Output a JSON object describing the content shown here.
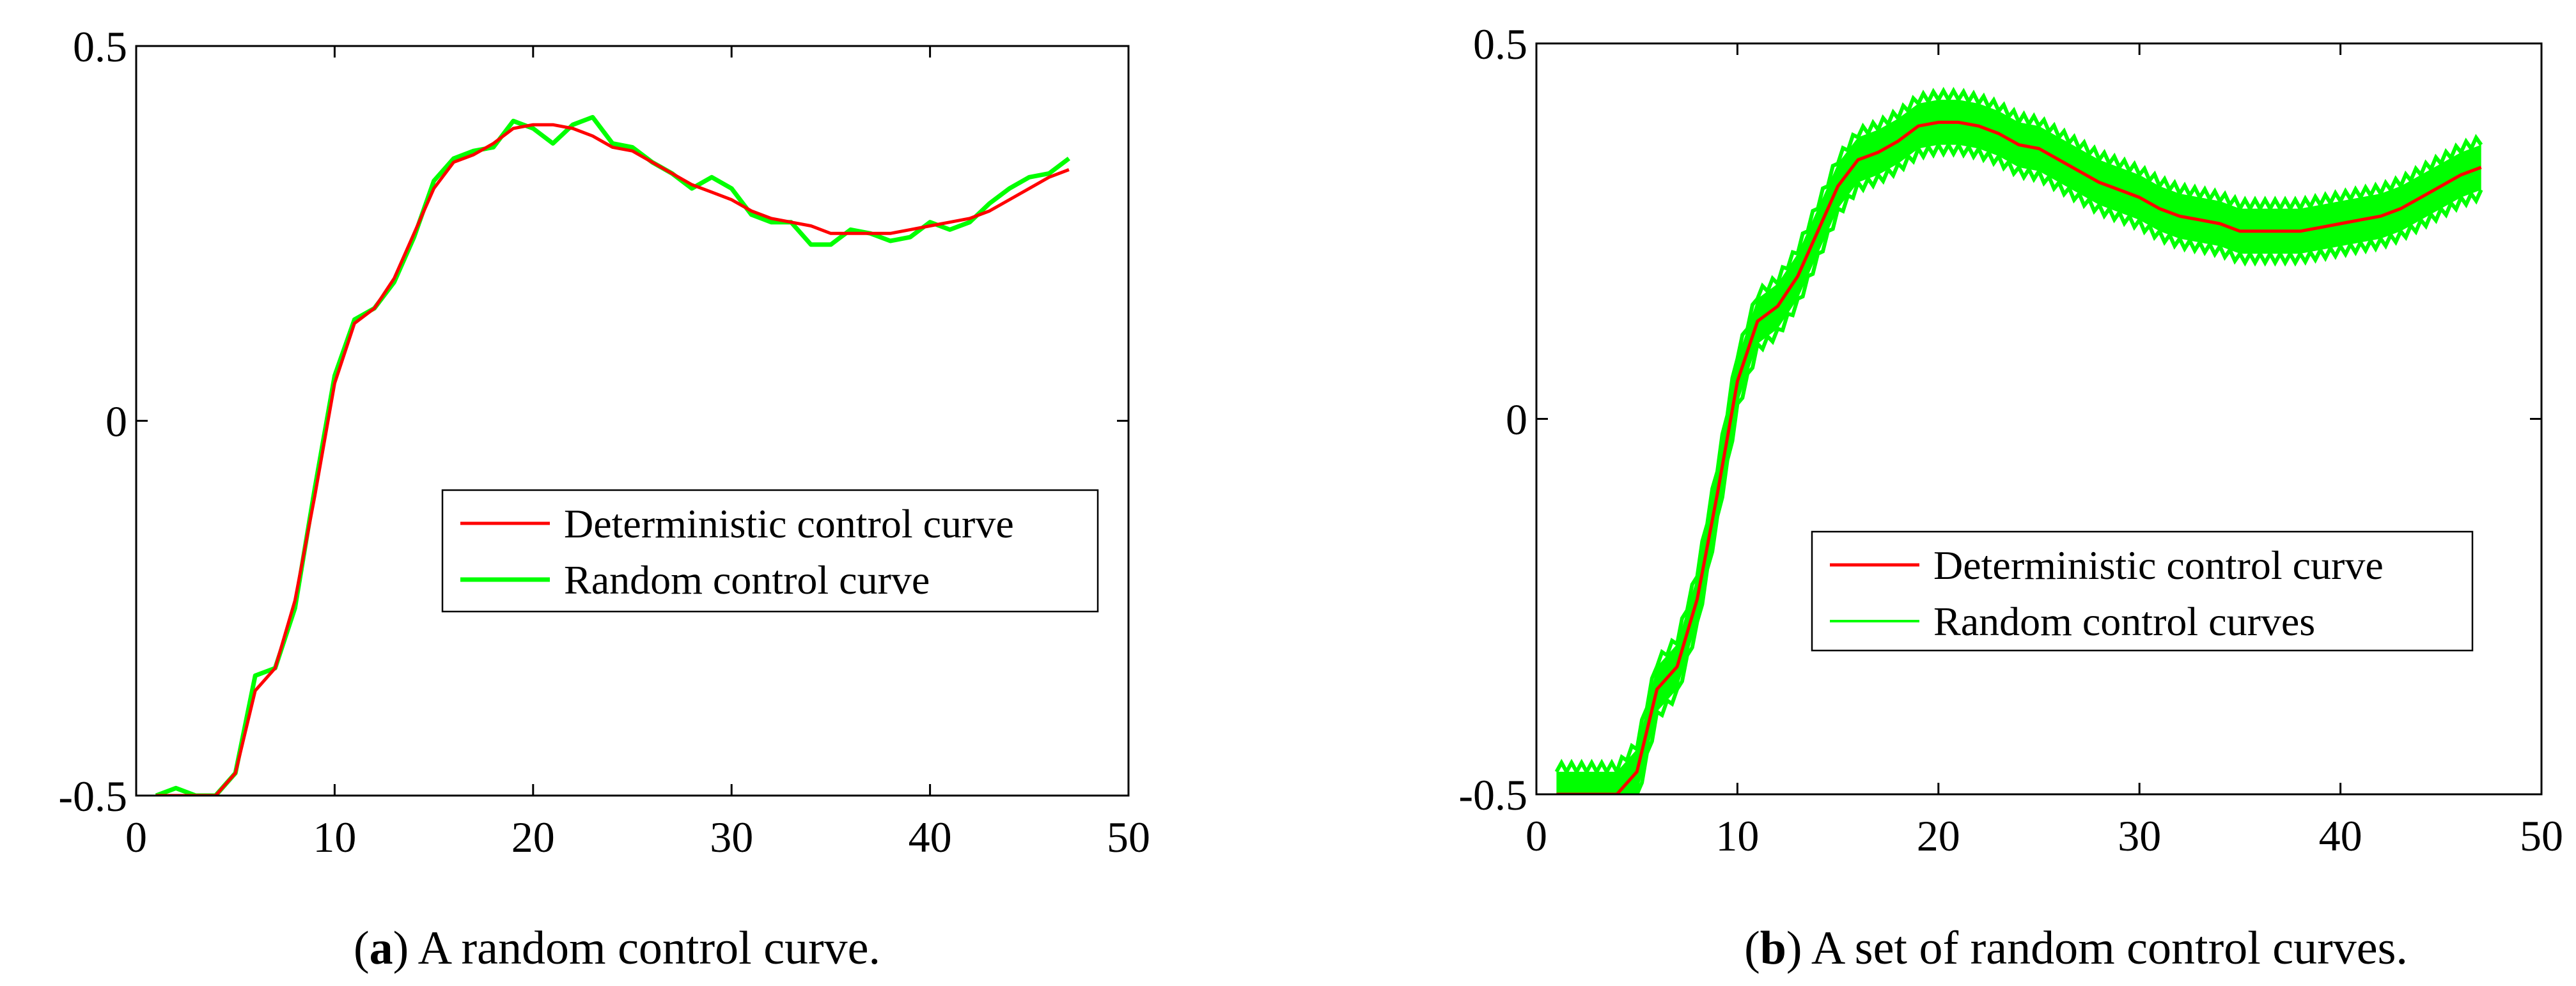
{
  "colors": {
    "deterministic": "#ff0000",
    "random": "#00ff00",
    "axes": "#000000",
    "background": "#ffffff"
  },
  "chart_data": [
    {
      "type": "line",
      "panel_label": "a",
      "caption": "A random control curve.",
      "title": "",
      "xlabel": "",
      "ylabel": "",
      "xlim": [
        0,
        50
      ],
      "ylim": [
        -0.5,
        0.5
      ],
      "x_ticks": [
        "0",
        "10",
        "20",
        "30",
        "40",
        "50"
      ],
      "y_ticks": [
        "-0.5",
        "0",
        "0.5"
      ],
      "grid": false,
      "legend_position": "lower-right",
      "series": [
        {
          "name": "Deterministic control curve",
          "color": "#ff0000",
          "x": [
            1,
            2,
            3,
            4,
            5,
            6,
            7,
            8,
            9,
            10,
            11,
            12,
            13,
            14,
            15,
            16,
            17,
            18,
            19,
            20,
            21,
            22,
            23,
            24,
            25,
            26,
            27,
            28,
            29,
            30,
            31,
            32,
            33,
            34,
            35,
            36,
            37,
            38,
            39,
            40,
            41,
            42,
            43,
            44,
            45,
            46,
            47
          ],
          "y": [
            -0.5,
            -0.5,
            -0.5,
            -0.5,
            -0.47,
            -0.36,
            -0.33,
            -0.24,
            -0.1,
            0.05,
            0.13,
            0.15,
            0.19,
            0.25,
            0.31,
            0.345,
            0.355,
            0.37,
            0.39,
            0.395,
            0.395,
            0.39,
            0.38,
            0.365,
            0.36,
            0.345,
            0.33,
            0.315,
            0.305,
            0.295,
            0.28,
            0.27,
            0.265,
            0.26,
            0.25,
            0.25,
            0.25,
            0.25,
            0.255,
            0.26,
            0.265,
            0.27,
            0.28,
            0.295,
            0.31,
            0.325,
            0.335
          ]
        },
        {
          "name": "Random control curve",
          "color": "#00ff00",
          "x": [
            1,
            2,
            3,
            4,
            5,
            6,
            7,
            8,
            9,
            10,
            11,
            12,
            13,
            14,
            15,
            16,
            17,
            18,
            19,
            20,
            21,
            22,
            23,
            24,
            25,
            26,
            27,
            28,
            29,
            30,
            31,
            32,
            33,
            34,
            35,
            36,
            37,
            38,
            39,
            40,
            41,
            42,
            43,
            44,
            45,
            46,
            47
          ],
          "y": [
            -0.5,
            -0.49,
            -0.5,
            -0.5,
            -0.47,
            -0.34,
            -0.33,
            -0.25,
            -0.09,
            0.06,
            0.135,
            0.15,
            0.185,
            0.245,
            0.32,
            0.35,
            0.36,
            0.365,
            0.4,
            0.39,
            0.37,
            0.395,
            0.405,
            0.37,
            0.365,
            0.345,
            0.33,
            0.31,
            0.325,
            0.31,
            0.275,
            0.265,
            0.265,
            0.235,
            0.235,
            0.255,
            0.25,
            0.24,
            0.245,
            0.265,
            0.255,
            0.265,
            0.29,
            0.31,
            0.325,
            0.33,
            0.35
          ]
        }
      ]
    },
    {
      "type": "line",
      "panel_label": "b",
      "caption": "A set of random control curves.",
      "title": "",
      "xlabel": "",
      "ylabel": "",
      "xlim": [
        0,
        50
      ],
      "ylim": [
        -0.5,
        0.5
      ],
      "x_ticks": [
        "0",
        "10",
        "20",
        "30",
        "40",
        "50"
      ],
      "y_ticks": [
        "-0.5",
        "0",
        "0.5"
      ],
      "grid": false,
      "legend_position": "lower-right",
      "series": [
        {
          "name": "Deterministic control curve",
          "color": "#ff0000",
          "x": [
            1,
            2,
            3,
            4,
            5,
            6,
            7,
            8,
            9,
            10,
            11,
            12,
            13,
            14,
            15,
            16,
            17,
            18,
            19,
            20,
            21,
            22,
            23,
            24,
            25,
            26,
            27,
            28,
            29,
            30,
            31,
            32,
            33,
            34,
            35,
            36,
            37,
            38,
            39,
            40,
            41,
            42,
            43,
            44,
            45,
            46,
            47
          ],
          "y": [
            -0.5,
            -0.5,
            -0.5,
            -0.5,
            -0.47,
            -0.36,
            -0.33,
            -0.24,
            -0.1,
            0.05,
            0.13,
            0.15,
            0.19,
            0.25,
            0.31,
            0.345,
            0.355,
            0.37,
            0.39,
            0.395,
            0.395,
            0.39,
            0.38,
            0.365,
            0.36,
            0.345,
            0.33,
            0.315,
            0.305,
            0.295,
            0.28,
            0.27,
            0.265,
            0.26,
            0.25,
            0.25,
            0.25,
            0.25,
            0.255,
            0.26,
            0.265,
            0.27,
            0.28,
            0.295,
            0.31,
            0.325,
            0.335
          ]
        },
        {
          "name": "Random control curves",
          "color": "#00ff00",
          "band": true,
          "x": [
            1,
            2,
            3,
            4,
            5,
            6,
            7,
            8,
            9,
            10,
            11,
            12,
            13,
            14,
            15,
            16,
            17,
            18,
            19,
            20,
            21,
            22,
            23,
            24,
            25,
            26,
            27,
            28,
            29,
            30,
            31,
            32,
            33,
            34,
            35,
            36,
            37,
            38,
            39,
            40,
            41,
            42,
            43,
            44,
            45,
            46,
            47
          ],
          "y_lower": [
            -0.53,
            -0.53,
            -0.53,
            -0.53,
            -0.5,
            -0.39,
            -0.36,
            -0.27,
            -0.13,
            0.02,
            0.1,
            0.12,
            0.16,
            0.22,
            0.28,
            0.315,
            0.325,
            0.34,
            0.36,
            0.365,
            0.365,
            0.36,
            0.35,
            0.335,
            0.33,
            0.315,
            0.3,
            0.285,
            0.275,
            0.265,
            0.25,
            0.24,
            0.235,
            0.23,
            0.22,
            0.22,
            0.22,
            0.22,
            0.225,
            0.23,
            0.235,
            0.24,
            0.25,
            0.265,
            0.28,
            0.295,
            0.305
          ],
          "y_upper": [
            -0.47,
            -0.47,
            -0.47,
            -0.47,
            -0.44,
            -0.33,
            -0.3,
            -0.21,
            -0.07,
            0.08,
            0.16,
            0.18,
            0.22,
            0.28,
            0.34,
            0.375,
            0.385,
            0.4,
            0.42,
            0.425,
            0.425,
            0.42,
            0.41,
            0.395,
            0.39,
            0.375,
            0.36,
            0.345,
            0.335,
            0.325,
            0.31,
            0.3,
            0.295,
            0.29,
            0.28,
            0.28,
            0.28,
            0.28,
            0.285,
            0.29,
            0.295,
            0.3,
            0.31,
            0.325,
            0.34,
            0.355,
            0.365
          ]
        }
      ]
    }
  ]
}
